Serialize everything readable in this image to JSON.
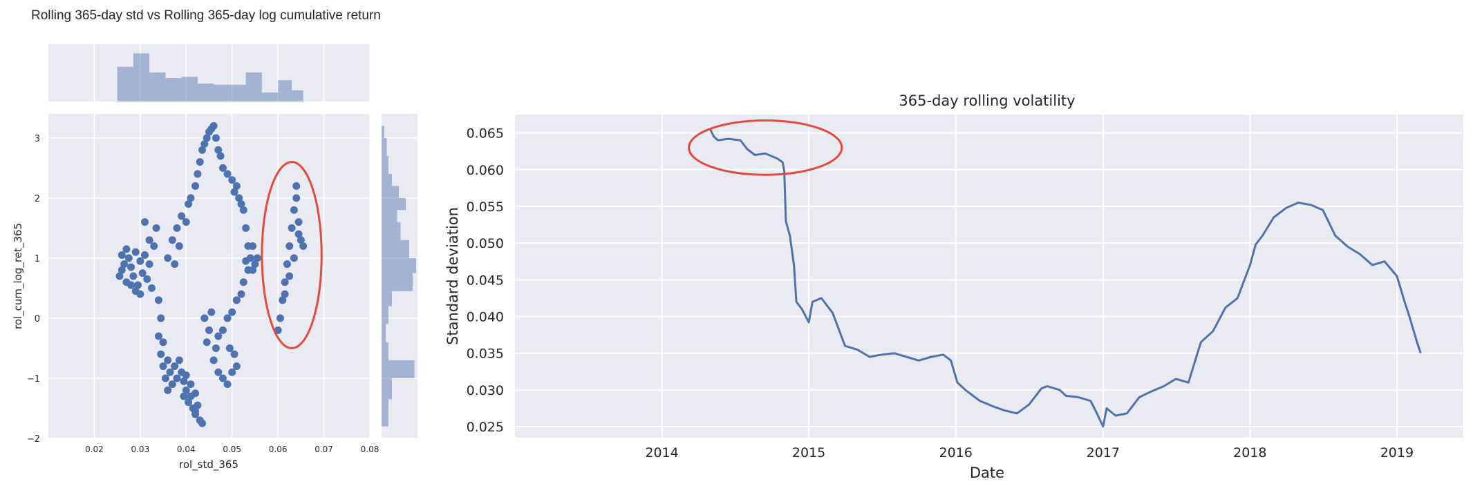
{
  "page_title": "Rolling 365-day std vs Rolling 365-day log cumulative return",
  "colors": {
    "face": "#EAEAF2",
    "grid": "#ffffff",
    "series": "#4C72B0",
    "hist": "#4C72B0",
    "highlight": "#E24A3B"
  },
  "chart_data": [
    {
      "type": "scatter",
      "title": "",
      "xlabel": "rol_std_365",
      "ylabel": "rol_cum_log_ret_365",
      "xlim": [
        0.01,
        0.08
      ],
      "ylim": [
        -2.0,
        3.4
      ],
      "xticks": [
        "0.02",
        "0.03",
        "0.04",
        "0.05",
        "0.06",
        "0.07",
        "0.08"
      ],
      "xtick_values": [
        0.02,
        0.03,
        0.04,
        0.05,
        0.06,
        0.07,
        0.08
      ],
      "yticks": [
        "−2",
        "−1",
        "0",
        "1",
        "2",
        "3"
      ],
      "ytick_values": [
        -2,
        -1,
        0,
        1,
        2,
        3
      ],
      "grid": true,
      "points": [
        [
          0.0255,
          0.7
        ],
        [
          0.026,
          0.8
        ],
        [
          0.0265,
          0.9
        ],
        [
          0.027,
          0.6
        ],
        [
          0.0275,
          1.0
        ],
        [
          0.028,
          0.85
        ],
        [
          0.0285,
          0.7
        ],
        [
          0.029,
          1.1
        ],
        [
          0.0295,
          0.55
        ],
        [
          0.03,
          0.95
        ],
        [
          0.0305,
          0.75
        ],
        [
          0.031,
          1.05
        ],
        [
          0.0315,
          0.65
        ],
        [
          0.032,
          0.9
        ],
        [
          0.0325,
          0.5
        ],
        [
          0.033,
          1.2
        ],
        [
          0.0335,
          1.5
        ],
        [
          0.032,
          1.3
        ],
        [
          0.031,
          1.6
        ],
        [
          0.03,
          0.4
        ],
        [
          0.029,
          0.45
        ],
        [
          0.028,
          0.55
        ],
        [
          0.027,
          1.15
        ],
        [
          0.026,
          1.05
        ],
        [
          0.034,
          0.3
        ],
        [
          0.0345,
          0.0
        ],
        [
          0.034,
          -0.3
        ],
        [
          0.0345,
          -0.6
        ],
        [
          0.035,
          -0.8
        ],
        [
          0.0355,
          -1.0
        ],
        [
          0.036,
          -0.7
        ],
        [
          0.0365,
          -0.9
        ],
        [
          0.037,
          -1.1
        ],
        [
          0.0375,
          -0.8
        ],
        [
          0.038,
          -1.0
        ],
        [
          0.035,
          -0.4
        ],
        [
          0.036,
          -1.2
        ],
        [
          0.0385,
          -0.7
        ],
        [
          0.039,
          -0.9
        ],
        [
          0.0395,
          -1.05
        ],
        [
          0.04,
          -1.2
        ],
        [
          0.0405,
          -1.4
        ],
        [
          0.041,
          -1.3
        ],
        [
          0.0415,
          -1.5
        ],
        [
          0.042,
          -1.6
        ],
        [
          0.0425,
          -1.45
        ],
        [
          0.043,
          -1.7
        ],
        [
          0.041,
          -1.1
        ],
        [
          0.04,
          -0.95
        ],
        [
          0.042,
          -1.25
        ],
        [
          0.0395,
          -1.3
        ],
        [
          0.036,
          1.0
        ],
        [
          0.037,
          1.3
        ],
        [
          0.038,
          1.5
        ],
        [
          0.039,
          1.7
        ],
        [
          0.0385,
          1.2
        ],
        [
          0.0375,
          0.9
        ],
        [
          0.04,
          1.6
        ],
        [
          0.0405,
          1.9
        ],
        [
          0.041,
          2.0
        ],
        [
          0.042,
          2.2
        ],
        [
          0.0425,
          2.4
        ],
        [
          0.043,
          2.6
        ],
        [
          0.0435,
          2.8
        ],
        [
          0.044,
          2.9
        ],
        [
          0.0445,
          3.0
        ],
        [
          0.045,
          3.1
        ],
        [
          0.0455,
          3.15
        ],
        [
          0.046,
          3.2
        ],
        [
          0.0465,
          3.0
        ],
        [
          0.047,
          2.8
        ],
        [
          0.0475,
          2.7
        ],
        [
          0.048,
          2.5
        ],
        [
          0.049,
          2.4
        ],
        [
          0.05,
          2.3
        ],
        [
          0.0505,
          2.1
        ],
        [
          0.051,
          2.2
        ],
        [
          0.0515,
          2.0
        ],
        [
          0.052,
          1.9
        ],
        [
          0.0525,
          1.8
        ],
        [
          0.053,
          1.5
        ],
        [
          0.0535,
          1.2
        ],
        [
          0.054,
          1.0
        ],
        [
          0.0535,
          0.8
        ],
        [
          0.0525,
          0.6
        ],
        [
          0.052,
          0.4
        ],
        [
          0.051,
          0.3
        ],
        [
          0.05,
          0.1
        ],
        [
          0.049,
          0.0
        ],
        [
          0.048,
          -0.2
        ],
        [
          0.047,
          -0.3
        ],
        [
          0.0465,
          -0.5
        ],
        [
          0.046,
          -0.7
        ],
        [
          0.047,
          -0.9
        ],
        [
          0.048,
          -1.0
        ],
        [
          0.049,
          -1.1
        ],
        [
          0.05,
          -0.9
        ],
        [
          0.051,
          -0.8
        ],
        [
          0.0505,
          -0.6
        ],
        [
          0.0495,
          -0.5
        ],
        [
          0.045,
          -0.2
        ],
        [
          0.044,
          0.0
        ],
        [
          0.0445,
          -0.4
        ],
        [
          0.0455,
          0.1
        ],
        [
          0.0545,
          0.8
        ],
        [
          0.055,
          0.9
        ],
        [
          0.0555,
          1.0
        ],
        [
          0.0545,
          1.2
        ],
        [
          0.053,
          0.95
        ],
        [
          0.06,
          -0.2
        ],
        [
          0.0605,
          0.0
        ],
        [
          0.061,
          0.3
        ],
        [
          0.0615,
          0.6
        ],
        [
          0.062,
          0.9
        ],
        [
          0.0625,
          1.2
        ],
        [
          0.063,
          1.5
        ],
        [
          0.0635,
          1.8
        ],
        [
          0.064,
          2.0
        ],
        [
          0.0645,
          1.6
        ],
        [
          0.065,
          1.3
        ],
        [
          0.0655,
          1.2
        ],
        [
          0.0645,
          1.4
        ],
        [
          0.0635,
          1.0
        ],
        [
          0.0625,
          0.7
        ],
        [
          0.064,
          2.2
        ],
        [
          0.0615,
          0.4
        ],
        [
          0.042,
          -1.55
        ],
        [
          0.0435,
          -1.75
        ]
      ],
      "x_hist": [
        {
          "x0": 0.025,
          "x1": 0.0285,
          "h": 0.62
        },
        {
          "x0": 0.0285,
          "x1": 0.032,
          "h": 0.86
        },
        {
          "x0": 0.032,
          "x1": 0.0355,
          "h": 0.52
        },
        {
          "x0": 0.0355,
          "x1": 0.039,
          "h": 0.42
        },
        {
          "x0": 0.039,
          "x1": 0.0425,
          "h": 0.44
        },
        {
          "x0": 0.0425,
          "x1": 0.046,
          "h": 0.32
        },
        {
          "x0": 0.046,
          "x1": 0.0495,
          "h": 0.3
        },
        {
          "x0": 0.0495,
          "x1": 0.053,
          "h": 0.3
        },
        {
          "x0": 0.053,
          "x1": 0.0565,
          "h": 0.52
        },
        {
          "x0": 0.0565,
          "x1": 0.06,
          "h": 0.16
        },
        {
          "x0": 0.06,
          "x1": 0.063,
          "h": 0.38
        },
        {
          "x0": 0.063,
          "x1": 0.0655,
          "h": 0.2
        }
      ],
      "y_hist": [
        {
          "y0": -1.8,
          "y1": -1.35,
          "w": 0.2
        },
        {
          "y0": -1.35,
          "y1": -1.0,
          "w": 0.3
        },
        {
          "y0": -1.0,
          "y1": -0.7,
          "w": 0.95
        },
        {
          "y0": -0.7,
          "y1": -0.4,
          "w": 0.2
        },
        {
          "y0": -0.4,
          "y1": -0.1,
          "w": 0.12
        },
        {
          "y0": -0.1,
          "y1": 0.2,
          "w": 0.2
        },
        {
          "y0": 0.2,
          "y1": 0.45,
          "w": 0.3
        },
        {
          "y0": 0.45,
          "y1": 0.75,
          "w": 0.9
        },
        {
          "y0": 0.75,
          "y1": 1.0,
          "w": 1.0
        },
        {
          "y0": 1.0,
          "y1": 1.3,
          "w": 0.8
        },
        {
          "y0": 1.3,
          "y1": 1.6,
          "w": 0.55
        },
        {
          "y0": 1.6,
          "y1": 1.8,
          "w": 0.45
        },
        {
          "y0": 1.8,
          "y1": 2.0,
          "w": 0.7
        },
        {
          "y0": 2.0,
          "y1": 2.2,
          "w": 0.5
        },
        {
          "y0": 2.2,
          "y1": 2.4,
          "w": 0.3
        },
        {
          "y0": 2.4,
          "y1": 2.7,
          "w": 0.2
        },
        {
          "y0": 2.7,
          "y1": 3.0,
          "w": 0.15
        },
        {
          "y0": 3.0,
          "y1": 3.2,
          "w": 0.08
        }
      ],
      "highlight_ellipse": {
        "cx": 0.063,
        "cy": 1.05,
        "rx": 0.0065,
        "ry": 1.55
      }
    },
    {
      "type": "line",
      "title": "365-day rolling volatility",
      "xlabel": "Date",
      "ylabel": "Standard deviation",
      "xlim": [
        "2013-01-01",
        "2019-06-15"
      ],
      "ylim": [
        0.0235,
        0.0675
      ],
      "xticks": [
        "2014",
        "2015",
        "2016",
        "2017",
        "2018",
        "2019"
      ],
      "xtick_values": [
        "2014-01-01",
        "2015-01-01",
        "2016-01-01",
        "2017-01-01",
        "2018-01-01",
        "2019-01-01"
      ],
      "yticks": [
        "0.025",
        "0.030",
        "0.035",
        "0.040",
        "0.045",
        "0.050",
        "0.055",
        "0.060",
        "0.065"
      ],
      "ytick_values": [
        0.025,
        0.03,
        0.035,
        0.04,
        0.045,
        0.05,
        0.055,
        0.06,
        0.065
      ],
      "grid": true,
      "series": [
        {
          "x": [
            "2014-05-01",
            "2014-05-10",
            "2014-05-20",
            "2014-06-15",
            "2014-07-15",
            "2014-08-01",
            "2014-08-20",
            "2014-09-15",
            "2014-10-15",
            "2014-10-28",
            "2014-11-01",
            "2014-11-05",
            "2014-11-15",
            "2014-11-25",
            "2014-12-01",
            "2014-12-15",
            "2015-01-01",
            "2015-01-10",
            "2015-02-01",
            "2015-03-01",
            "2015-04-01",
            "2015-05-01",
            "2015-06-01",
            "2015-07-01",
            "2015-08-01",
            "2015-09-01",
            "2015-10-01",
            "2015-11-01",
            "2015-12-01",
            "2015-12-20",
            "2016-01-05",
            "2016-01-25",
            "2016-03-01",
            "2016-04-01",
            "2016-05-01",
            "2016-06-01",
            "2016-07-01",
            "2016-08-01",
            "2016-08-15",
            "2016-09-15",
            "2016-10-01",
            "2016-11-01",
            "2016-12-01",
            "2016-12-15",
            "2017-01-01",
            "2017-01-10",
            "2017-02-01",
            "2017-03-01",
            "2017-04-01",
            "2017-05-01",
            "2017-06-01",
            "2017-07-01",
            "2017-08-01",
            "2017-09-01",
            "2017-10-01",
            "2017-11-01",
            "2017-12-01",
            "2018-01-01",
            "2018-01-15",
            "2018-02-01",
            "2018-03-01",
            "2018-04-01",
            "2018-05-01",
            "2018-06-01",
            "2018-07-01",
            "2018-08-01",
            "2018-09-01",
            "2018-10-01",
            "2018-11-01",
            "2018-12-01",
            "2019-01-01",
            "2019-01-20",
            "2019-02-01",
            "2019-02-20",
            "2019-03-01"
          ],
          "y": [
            0.0655,
            0.0645,
            0.064,
            0.0642,
            0.064,
            0.0628,
            0.062,
            0.0622,
            0.0615,
            0.061,
            0.0598,
            0.053,
            0.051,
            0.047,
            0.042,
            0.041,
            0.0392,
            0.042,
            0.0425,
            0.0405,
            0.036,
            0.0355,
            0.0345,
            0.0348,
            0.035,
            0.0345,
            0.034,
            0.0345,
            0.0348,
            0.034,
            0.031,
            0.03,
            0.0285,
            0.0278,
            0.0272,
            0.0268,
            0.028,
            0.0302,
            0.0305,
            0.03,
            0.0292,
            0.029,
            0.0285,
            0.027,
            0.025,
            0.0275,
            0.0265,
            0.0268,
            0.029,
            0.0298,
            0.0305,
            0.0315,
            0.031,
            0.0365,
            0.038,
            0.0412,
            0.0425,
            0.047,
            0.0498,
            0.051,
            0.0535,
            0.0548,
            0.0555,
            0.0552,
            0.0545,
            0.051,
            0.0495,
            0.0485,
            0.047,
            0.0475,
            0.0455,
            0.042,
            0.04,
            0.0365,
            0.035
          ]
        }
      ],
      "highlight_ellipse": {
        "cx": "2014-09-15",
        "cy": 0.063,
        "rx_days": 190,
        "ry": 0.0037
      }
    }
  ]
}
